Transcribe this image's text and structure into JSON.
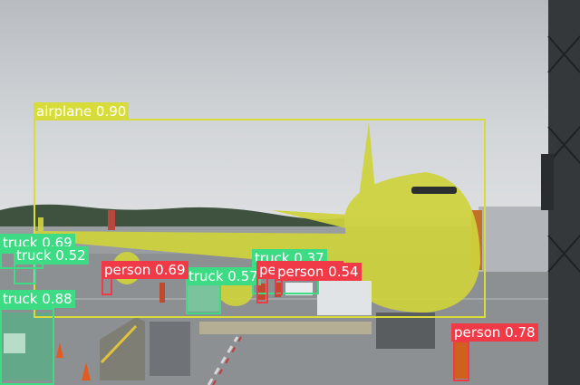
{
  "colors": {
    "airplane": "#d7dc3a",
    "truck": "#3ddc84",
    "person": "#f03a47",
    "label_text": "#ffffff"
  },
  "detections": [
    {
      "label": "airplane 0.90",
      "class": "airplane"
    },
    {
      "label": "truck 0.69",
      "class": "truck"
    },
    {
      "label": "truck 0.52",
      "class": "truck"
    },
    {
      "label": "truck 0.88",
      "class": "truck"
    },
    {
      "label": "truck 0.37",
      "class": "truck"
    },
    {
      "label": "truck 0.57",
      "class": "truck"
    },
    {
      "label": "person 0.69",
      "class": "person"
    },
    {
      "label": "person 0.53",
      "class": "person"
    },
    {
      "label": "person 0.54",
      "class": "person"
    },
    {
      "label": "person 0.78",
      "class": "person"
    }
  ]
}
